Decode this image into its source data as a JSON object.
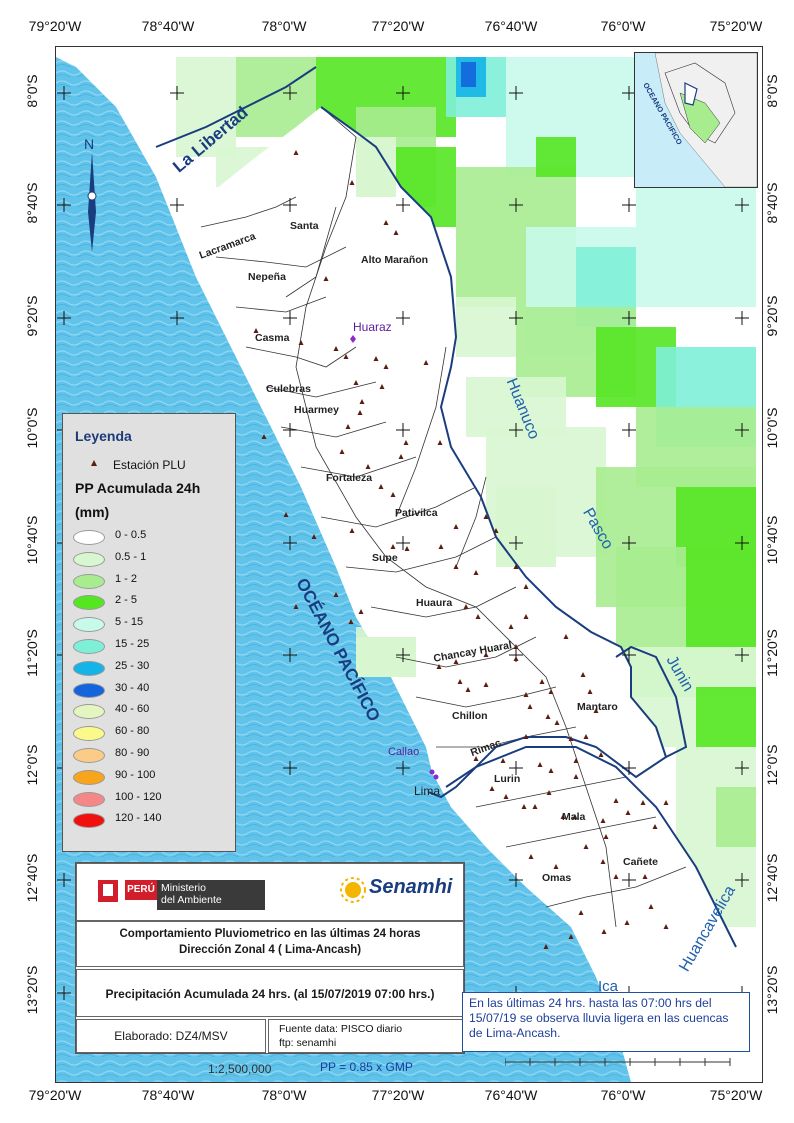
{
  "coords": {
    "lon": [
      "79°20'W",
      "78°40'W",
      "78°0'W",
      "77°20'W",
      "76°40'W",
      "76°0'W",
      "75°20'W"
    ],
    "lat": [
      "8°0'S",
      "8°40'S",
      "9°20'S",
      "10°0'S",
      "10°40'S",
      "11°20'S",
      "12°0'S",
      "12°40'S",
      "13°20'S"
    ]
  },
  "regions": {
    "la_libertad": "La Libertad",
    "huanuco": "Huanuco",
    "pasco": "Pasco",
    "junin": "Junin",
    "huancavelica": "Huancavelica",
    "ica": "Ica",
    "oceano": "OCÉANO PACÍFICO"
  },
  "basins": [
    "Santa",
    "Alto Marañon",
    "Lacramarca",
    "Nepeña",
    "Casma",
    "Culebras",
    "Huarmey",
    "Fortaleza",
    "Pativilca",
    "Supe",
    "Huaura",
    "Chancay Huaral",
    "Chillon",
    "Rimac",
    "Mantaro",
    "Lurin",
    "Mala",
    "Omas",
    "Cañete"
  ],
  "cities": {
    "huaraz": "Huaraz",
    "callao": "Callao",
    "lima": "Lima"
  },
  "north": "N",
  "legend": {
    "title": "Leyenda",
    "station": "Estación PLU",
    "pp_title_1": "PP Acumulada 24h",
    "pp_title_2": "(mm)",
    "classes": [
      {
        "label": "0 - 0.5",
        "color": "#ffffff"
      },
      {
        "label": "0.5 - 1",
        "color": "#d8f6d0"
      },
      {
        "label": "1 - 2",
        "color": "#a8ec90"
      },
      {
        "label": "2 - 5",
        "color": "#55e622"
      },
      {
        "label": "5 - 15",
        "color": "#c8faea"
      },
      {
        "label": "15 - 25",
        "color": "#7ff0d8"
      },
      {
        "label": "25 - 30",
        "color": "#14b4e8"
      },
      {
        "label": "30 - 40",
        "color": "#1464dc"
      },
      {
        "label": "40 - 60",
        "color": "#e4f6c0"
      },
      {
        "label": "60 - 80",
        "color": "#fafa8a"
      },
      {
        "label": "80 - 90",
        "color": "#facc88"
      },
      {
        "label": "90 - 100",
        "color": "#f8a41c"
      },
      {
        "label": "100 - 120",
        "color": "#f48888"
      },
      {
        "label": "120 - 140",
        "color": "#f01010"
      }
    ]
  },
  "logos": {
    "peru": "PERÚ",
    "ministerio_1": "Ministerio",
    "ministerio_2": "del Ambiente",
    "senamhi": "Senamhi"
  },
  "title_1": "Comportamiento Pluviometrico en las últimas 24 horas",
  "title_2": "Dirección Zonal 4 ( Lima-Ancash)",
  "precip": "Precipitación Acumulada  24 hrs. (al 15/07/2019  07:00  hrs.)",
  "elaborado": "Elaborado: DZ4/MSV",
  "fuente_1": "Fuente data:  PISCO diario",
  "fuente_2": "ftp: senamhi",
  "note": "En las últimas 24 hrs. hasta las 07:00 hrs del  15/07/19  se observa   lluvia ligera en las  cuencas   de  Lima-Ancash.",
  "scale": "1:2,500,000",
  "pp_formula": "PP = 0.85 x GMP",
  "inset": {
    "ocean": "OCEANO PACIFICO"
  }
}
